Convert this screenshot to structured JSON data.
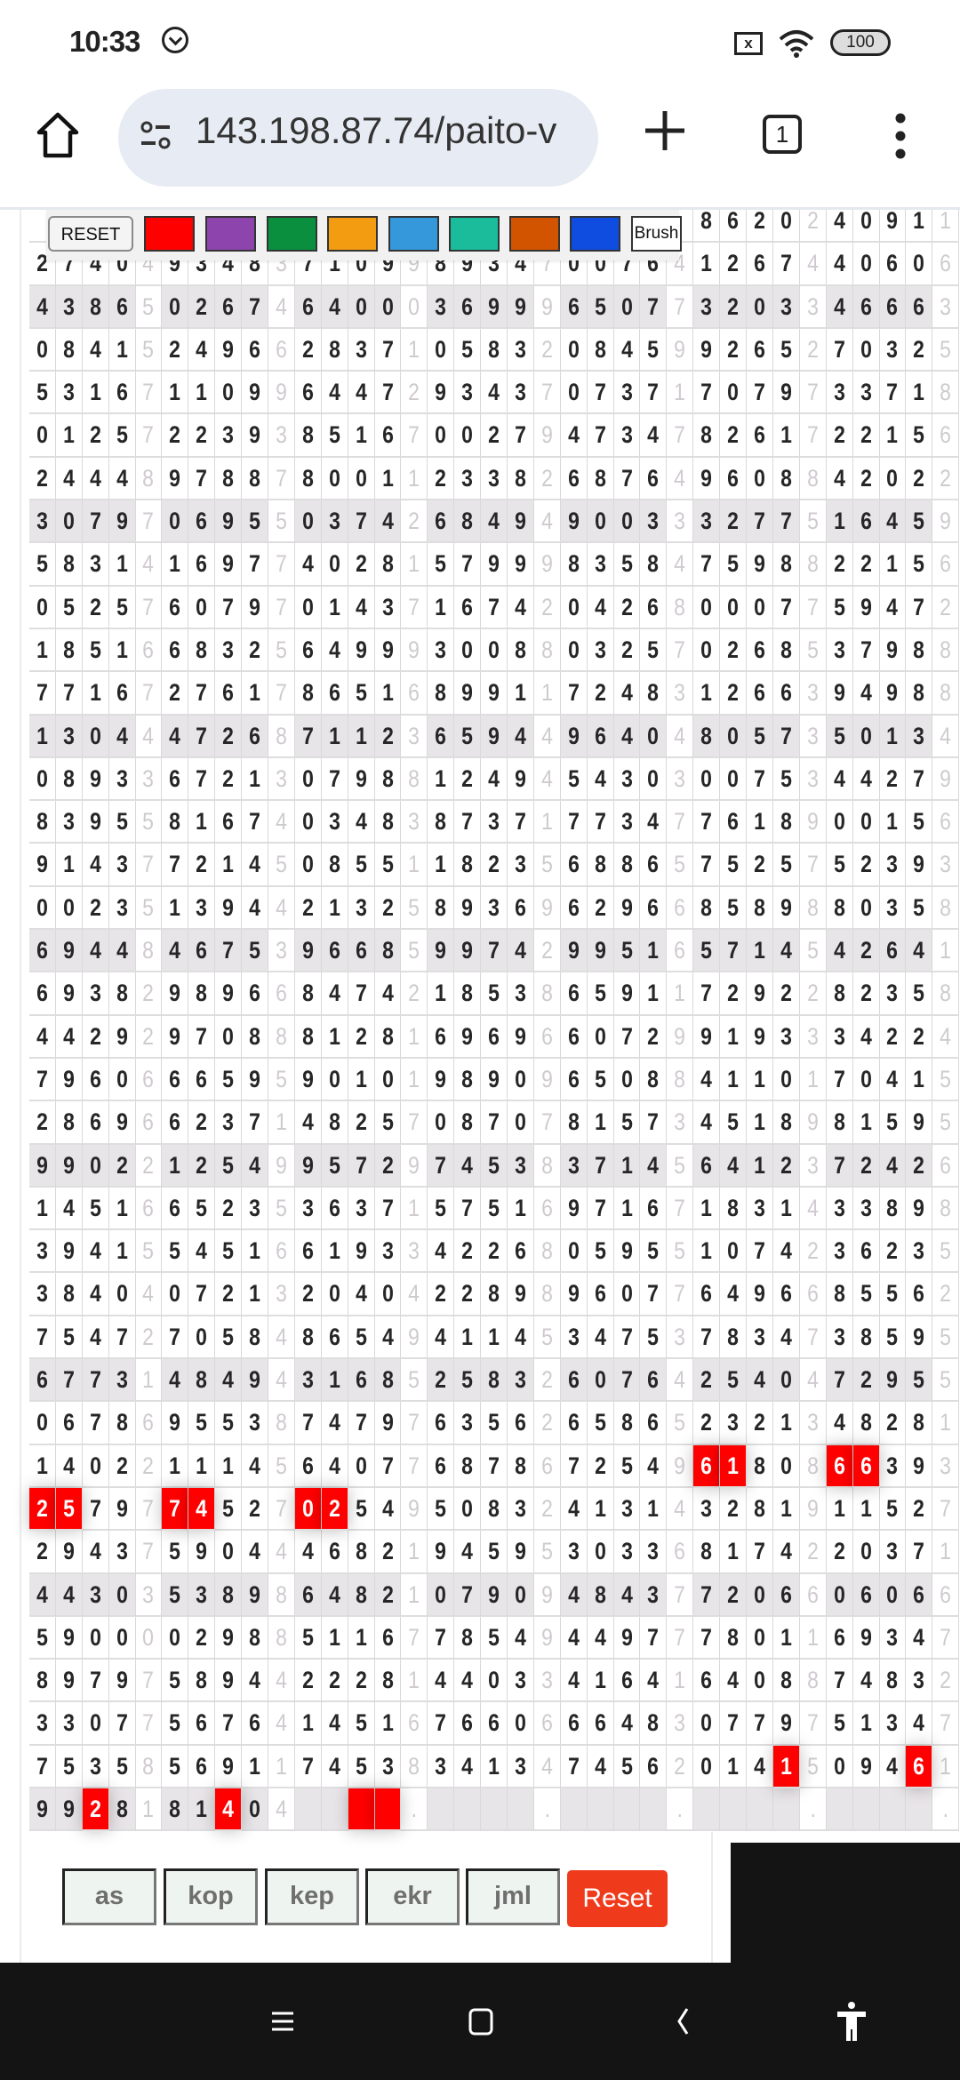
{
  "status_bar": {
    "time": "10:33",
    "battery": "100",
    "icons": [
      "alarm-icon",
      "no-sim-icon",
      "wifi-icon",
      "battery-icon"
    ]
  },
  "browser": {
    "url": "143.198.87.74/paito-v",
    "tab_count": "1"
  },
  "toolbar": {
    "reset_label": "RESET",
    "colors": [
      "#ff0000",
      "#8e44ad",
      "#0a8f3f",
      "#f39c12",
      "#3498db",
      "#1abc9c",
      "#d35400",
      "#0f4de0"
    ],
    "brush_label": "Brush"
  },
  "grid": {
    "highlight_color": "#ff0000",
    "rows": [
      [
        "",
        "",
        "",
        "",
        "",
        "",
        "",
        "",
        "",
        "",
        "8620",
        "2",
        "4091",
        "1"
      ],
      [
        "2740",
        "4",
        "9348",
        "3",
        "7109",
        "9",
        "8934",
        "7",
        "0076",
        "4",
        "1267",
        "4",
        "4060",
        "6"
      ],
      [
        "4386",
        "5",
        "0267",
        "4",
        "6400",
        "0",
        "3699",
        "9",
        "6507",
        "7",
        "3203",
        "3",
        "4666",
        "3"
      ],
      [
        "0841",
        "5",
        "2496",
        "6",
        "2837",
        "1",
        "0583",
        "2",
        "0845",
        "9",
        "9265",
        "2",
        "7032",
        "5"
      ],
      [
        "5316",
        "7",
        "1109",
        "9",
        "6447",
        "2",
        "9343",
        "7",
        "0737",
        "1",
        "7079",
        "7",
        "3371",
        "8"
      ],
      [
        "0125",
        "7",
        "2239",
        "3",
        "8516",
        "7",
        "0027",
        "9",
        "4734",
        "7",
        "8261",
        "7",
        "2215",
        "6"
      ],
      [
        "2444",
        "8",
        "9788",
        "7",
        "8001",
        "1",
        "2338",
        "2",
        "6876",
        "4",
        "9608",
        "8",
        "4202",
        "2"
      ],
      [
        "3079",
        "7",
        "0695",
        "5",
        "0374",
        "2",
        "6849",
        "4",
        "9003",
        "3",
        "3277",
        "5",
        "1645",
        "9"
      ],
      [
        "5831",
        "4",
        "1697",
        "7",
        "4028",
        "1",
        "5799",
        "9",
        "8358",
        "4",
        "7598",
        "8",
        "2215",
        "6"
      ],
      [
        "0525",
        "7",
        "6079",
        "7",
        "0143",
        "7",
        "1674",
        "2",
        "0426",
        "8",
        "0007",
        "7",
        "5947",
        "2"
      ],
      [
        "1851",
        "6",
        "6832",
        "5",
        "6499",
        "9",
        "3008",
        "8",
        "0325",
        "7",
        "0268",
        "5",
        "3798",
        "8"
      ],
      [
        "7716",
        "7",
        "2761",
        "7",
        "8651",
        "6",
        "8991",
        "1",
        "7248",
        "3",
        "1266",
        "3",
        "9498",
        "8"
      ],
      [
        "1304",
        "4",
        "4726",
        "8",
        "7112",
        "3",
        "6594",
        "4",
        "9640",
        "4",
        "8057",
        "3",
        "5013",
        "4"
      ],
      [
        "0893",
        "3",
        "6721",
        "3",
        "0798",
        "8",
        "1249",
        "4",
        "5430",
        "3",
        "0075",
        "3",
        "4427",
        "9"
      ],
      [
        "8395",
        "5",
        "8167",
        "4",
        "0348",
        "3",
        "8737",
        "1",
        "7734",
        "7",
        "7618",
        "9",
        "0015",
        "6"
      ],
      [
        "9143",
        "7",
        "7214",
        "5",
        "0855",
        "1",
        "1823",
        "5",
        "6886",
        "5",
        "7525",
        "7",
        "5239",
        "3"
      ],
      [
        "0023",
        "5",
        "1394",
        "4",
        "2132",
        "5",
        "8936",
        "9",
        "6296",
        "6",
        "8589",
        "8",
        "8035",
        "8"
      ],
      [
        "6944",
        "8",
        "4675",
        "3",
        "9668",
        "5",
        "9974",
        "2",
        "9951",
        "6",
        "5714",
        "5",
        "4264",
        "1"
      ],
      [
        "6938",
        "2",
        "9896",
        "6",
        "8474",
        "2",
        "1853",
        "8",
        "6591",
        "1",
        "7292",
        "2",
        "8235",
        "8"
      ],
      [
        "4429",
        "2",
        "9708",
        "8",
        "8128",
        "1",
        "6969",
        "6",
        "6072",
        "9",
        "9193",
        "3",
        "3422",
        "4"
      ],
      [
        "7960",
        "6",
        "6659",
        "5",
        "9010",
        "1",
        "9890",
        "9",
        "6508",
        "8",
        "4110",
        "1",
        "7041",
        "5"
      ],
      [
        "2869",
        "6",
        "6237",
        "1",
        "4825",
        "7",
        "0870",
        "7",
        "8157",
        "3",
        "4518",
        "9",
        "8159",
        "5"
      ],
      [
        "9902",
        "2",
        "1254",
        "9",
        "9572",
        "9",
        "7453",
        "8",
        "3714",
        "5",
        "6412",
        "3",
        "7242",
        "6"
      ],
      [
        "1451",
        "6",
        "6523",
        "5",
        "3637",
        "1",
        "5751",
        "6",
        "9716",
        "7",
        "1831",
        "4",
        "3389",
        "8"
      ],
      [
        "3941",
        "5",
        "5451",
        "6",
        "6193",
        "3",
        "4226",
        "8",
        "0595",
        "5",
        "1074",
        "2",
        "3623",
        "5"
      ],
      [
        "3840",
        "4",
        "0721",
        "3",
        "2040",
        "4",
        "2289",
        "8",
        "9607",
        "7",
        "6496",
        "6",
        "8556",
        "2"
      ],
      [
        "7547",
        "2",
        "7058",
        "4",
        "8654",
        "9",
        "4114",
        "5",
        "3475",
        "3",
        "7834",
        "7",
        "3859",
        "5"
      ],
      [
        "6773",
        "1",
        "4849",
        "4",
        "3168",
        "5",
        "2583",
        "2",
        "6076",
        "4",
        "2540",
        "4",
        "7295",
        "5"
      ],
      [
        "0678",
        "6",
        "9553",
        "8",
        "7479",
        "7",
        "6356",
        "2",
        "6586",
        "5",
        "2321",
        "3",
        "4828",
        "1"
      ],
      [
        "1402",
        "2",
        "1114",
        "5",
        "6407",
        "7",
        "6878",
        "6",
        "7254",
        "9",
        "6180",
        "8",
        "6639",
        "3"
      ],
      [
        "2579",
        "7",
        "7452",
        "7",
        "0254",
        "9",
        "5083",
        "2",
        "4131",
        "4",
        "3281",
        "9",
        "1152",
        "7"
      ],
      [
        "2943",
        "7",
        "5904",
        "4",
        "4682",
        "1",
        "9459",
        "5",
        "3033",
        "6",
        "8174",
        "2",
        "2037",
        "1"
      ],
      [
        "4430",
        "3",
        "5389",
        "8",
        "6482",
        "1",
        "0790",
        "9",
        "4843",
        "7",
        "7206",
        "6",
        "0606",
        "6"
      ],
      [
        "5900",
        "0",
        "0298",
        "8",
        "5116",
        "7",
        "7854",
        "9",
        "4497",
        "7",
        "7801",
        "1",
        "6934",
        "7"
      ],
      [
        "8979",
        "7",
        "5894",
        "4",
        "2228",
        "1",
        "4403",
        "3",
        "4164",
        "1",
        "6408",
        "8",
        "7483",
        "2"
      ],
      [
        "3307",
        "7",
        "5676",
        "4",
        "1451",
        "6",
        "7660",
        "6",
        "6648",
        "3",
        "0779",
        "7",
        "5134",
        "7"
      ],
      [
        "7535",
        "8",
        "5691",
        "1",
        "7453",
        "8",
        "3413",
        "4",
        "7456",
        "2",
        "0141",
        "5",
        "0946",
        "1"
      ],
      [
        "9928",
        "1",
        "8140",
        "4",
        "",
        ".",
        "",
        ".",
        "",
        ".",
        "",
        ".",
        "",
        "."
      ]
    ],
    "marked": [
      [
        29,
        25
      ],
      [
        29,
        26
      ],
      [
        29,
        30
      ],
      [
        29,
        31
      ],
      [
        30,
        0
      ],
      [
        30,
        1
      ],
      [
        30,
        5
      ],
      [
        30,
        6
      ],
      [
        30,
        10
      ],
      [
        30,
        11
      ],
      [
        36,
        28
      ],
      [
        36,
        33
      ],
      [
        37,
        2
      ],
      [
        37,
        7
      ],
      [
        37,
        12
      ],
      [
        37,
        13
      ]
    ]
  },
  "buttons": {
    "as": "as",
    "kop": "kop",
    "kep": "kep",
    "ekr": "ekr",
    "jml": "jml",
    "reset": "Reset"
  },
  "nav_bar": {
    "icons": [
      "recents-icon",
      "home-icon",
      "back-icon",
      "accessibility-icon"
    ]
  }
}
